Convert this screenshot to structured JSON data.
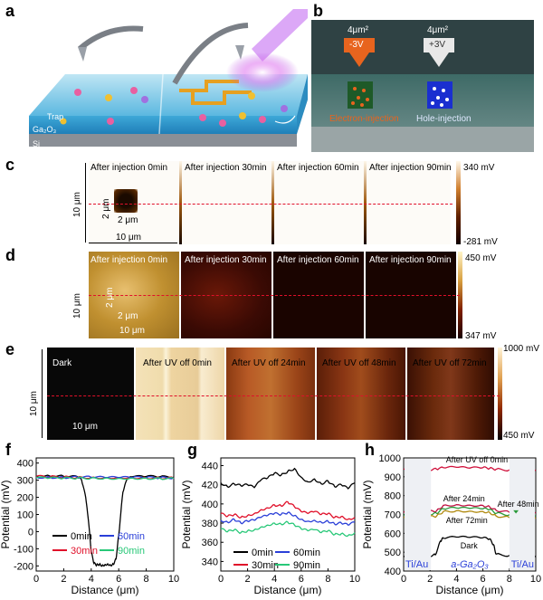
{
  "panel_labels": {
    "a": "a",
    "b": "b",
    "c": "c",
    "d": "d",
    "e": "e",
    "f": "f",
    "g": "g",
    "h": "h"
  },
  "panel_a": {
    "trap_label": "Trap",
    "material_label": "Ga₂O₃",
    "substrate_label": "Si"
  },
  "panel_b": {
    "left_area": "4μm²",
    "left_voltage": "-3V",
    "left_caption": "Electron-injection",
    "right_area": "4μm²",
    "right_voltage": "+3V",
    "right_caption": "Hole-injection",
    "left_color": "#e8641e",
    "right_color": "#1a2fd0"
  },
  "panel_c": {
    "titles": [
      "After injection  0min",
      "After injection   30min",
      "After injection   60min",
      "After injection   90min"
    ],
    "scale_max": "340 mV",
    "scale_min": "-281 mV",
    "dim_vertical": "10 μm",
    "dim_horizontal": "10 μm",
    "box_vertical": "2 μm",
    "box_horizontal": "2 μm"
  },
  "panel_d": {
    "titles": [
      "After injection  0min",
      "After injection   30min",
      "After injection   60min",
      "After injection   90min"
    ],
    "scale_max": "450 mV",
    "scale_min": "347 mV",
    "dim_vertical": "10 μm",
    "box_vertical": "2 μm",
    "box_horizontal": "2 μm",
    "dim_horizontal": "10 μm"
  },
  "panel_e": {
    "titles": [
      "Dark",
      "After UV off 0min",
      "After UV off 24min",
      "After UV off 48min",
      "After UV off 72min"
    ],
    "scale_max": "1000 mV",
    "scale_min": "450 mV",
    "dim_vertical": "10 μm",
    "dim_horizontal": "10 μm"
  },
  "chart_data": [
    {
      "id": "f",
      "type": "line",
      "xlabel": "Distance (μm)",
      "ylabel": "Potential (mV)",
      "xlim": [
        0,
        10
      ],
      "ylim": [
        -230,
        430
      ],
      "xticks": [
        0,
        2,
        4,
        6,
        8,
        10
      ],
      "yticks": [
        -200,
        -100,
        0,
        100,
        200,
        300,
        400
      ],
      "legend_position": "bottom",
      "series": [
        {
          "name": "0min",
          "color": "#000000",
          "x": [
            0,
            1,
            2,
            3,
            3.3,
            3.6,
            3.8,
            4.0,
            4.2,
            4.4,
            4.6,
            4.8,
            5.0,
            5.2,
            5.4,
            5.6,
            5.8,
            6.0,
            6.3,
            6.6,
            7,
            8,
            9,
            10
          ],
          "y": [
            325,
            324,
            323,
            320,
            300,
            200,
            60,
            -120,
            -185,
            -195,
            -190,
            -197,
            -192,
            -188,
            -195,
            -190,
            -160,
            -20,
            230,
            305,
            320,
            322,
            320,
            318
          ]
        },
        {
          "name": "30min",
          "color": "#e0102a",
          "x": [
            0,
            1,
            2,
            3,
            4,
            5,
            6,
            7,
            8,
            9,
            10
          ],
          "y": [
            322,
            320,
            318,
            317,
            316,
            315,
            316,
            315,
            314,
            313,
            312
          ]
        },
        {
          "name": "60min",
          "color": "#2a3fd8",
          "x": [
            0,
            1,
            2,
            3,
            4,
            5,
            6,
            7,
            8,
            9,
            10
          ],
          "y": [
            318,
            317,
            316,
            318,
            317,
            316,
            315,
            316,
            315,
            314,
            314
          ]
        },
        {
          "name": "90min",
          "color": "#28c878",
          "x": [
            0,
            1,
            2,
            3,
            4,
            5,
            6,
            7,
            8,
            9,
            10
          ],
          "y": [
            314,
            313,
            312,
            313,
            312,
            312,
            311,
            312,
            311,
            311,
            310
          ]
        }
      ]
    },
    {
      "id": "g",
      "type": "line",
      "xlabel": "Distance (μm)",
      "ylabel": "Potential (mV)",
      "xlim": [
        0,
        10
      ],
      "ylim": [
        330,
        448
      ],
      "xticks": [
        0,
        2,
        4,
        6,
        8,
        10
      ],
      "yticks": [
        340,
        360,
        380,
        400,
        420,
        440
      ],
      "legend_position": "bottom",
      "series": [
        {
          "name": "0min",
          "color": "#000000",
          "x": [
            0,
            0.5,
            1,
            1.5,
            2,
            2.5,
            3,
            3.5,
            4,
            4.5,
            5,
            5.5,
            6,
            6.5,
            7,
            7.5,
            8,
            8.5,
            9,
            9.5,
            10
          ],
          "y": [
            422,
            418,
            421,
            419,
            420,
            417,
            425,
            427,
            432,
            430,
            434,
            437,
            428,
            423,
            426,
            421,
            424,
            418,
            420,
            416,
            422
          ]
        },
        {
          "name": "30min",
          "color": "#e0102a",
          "x": [
            0,
            0.5,
            1,
            1.5,
            2,
            2.5,
            3,
            3.5,
            4,
            4.5,
            5,
            5.5,
            6,
            6.5,
            7,
            7.5,
            8,
            8.5,
            9,
            9.5,
            10
          ],
          "y": [
            390,
            387,
            389,
            386,
            388,
            390,
            394,
            396,
            399,
            398,
            402,
            397,
            392,
            390,
            392,
            389,
            390,
            386,
            387,
            384,
            386
          ]
        },
        {
          "name": "60min",
          "color": "#2a3fd8",
          "x": [
            0,
            0.5,
            1,
            1.5,
            2,
            2.5,
            3,
            3.5,
            4,
            4.5,
            5,
            5.5,
            6,
            6.5,
            7,
            7.5,
            8,
            8.5,
            9,
            9.5,
            10
          ],
          "y": [
            383,
            381,
            384,
            380,
            382,
            383,
            386,
            388,
            390,
            389,
            391,
            388,
            384,
            382,
            383,
            381,
            382,
            379,
            380,
            378,
            381
          ]
        },
        {
          "name": "90min",
          "color": "#28c878",
          "x": [
            0,
            0.5,
            1,
            1.5,
            2,
            2.5,
            3,
            3.5,
            4,
            4.5,
            5,
            5.5,
            6,
            6.5,
            7,
            7.5,
            8,
            8.5,
            9,
            9.5,
            10
          ],
          "y": [
            374,
            371,
            373,
            370,
            372,
            373,
            376,
            378,
            380,
            379,
            381,
            378,
            374,
            372,
            373,
            370,
            372,
            368,
            369,
            367,
            370
          ]
        }
      ]
    },
    {
      "id": "h",
      "type": "line",
      "xlabel": "Distance (μm)",
      "ylabel": "Potential (mV)",
      "xlim": [
        0,
        10
      ],
      "ylim": [
        400,
        1000
      ],
      "xticks": [
        0,
        2,
        4,
        6,
        8,
        10
      ],
      "yticks": [
        400,
        500,
        600,
        700,
        800,
        900,
        1000
      ],
      "annotations": [
        "After UV off 0min",
        "After 24min",
        "After 48min",
        "After 72min",
        "Dark"
      ],
      "region_labels": {
        "left": "Ti/Au",
        "middle": "a-Ga₂O₃",
        "right": "Ti/Au"
      },
      "series": [
        {
          "name": "After UV off 0min",
          "color": "#d0103a",
          "x": [
            0,
            1,
            2,
            2.5,
            3,
            4,
            5,
            6,
            6.5,
            7,
            8,
            9,
            10
          ],
          "y": [
            942,
            944,
            938,
            940,
            948,
            950,
            946,
            948,
            944,
            940,
            936,
            938,
            935
          ]
        },
        {
          "name": "After 24min",
          "color": "#c01040",
          "x": [
            0,
            1,
            2,
            2.5,
            3,
            4,
            5,
            6,
            6.5,
            7,
            8,
            9,
            10
          ],
          "y": [
            712,
            714,
            716,
            720,
            748,
            752,
            750,
            748,
            742,
            722,
            712,
            710,
            708
          ]
        },
        {
          "name": "After 48min",
          "color": "#2a9a3a",
          "x": [
            0,
            1,
            2,
            2.5,
            3,
            4,
            5,
            6,
            6.5,
            7,
            8,
            9,
            10
          ],
          "y": [
            698,
            700,
            702,
            706,
            730,
            734,
            732,
            730,
            726,
            706,
            698,
            696,
            694
          ]
        },
        {
          "name": "After 72min",
          "color": "#b08a10",
          "x": [
            0,
            1,
            2,
            2.5,
            3,
            4,
            5,
            6,
            6.5,
            7,
            8,
            9,
            10
          ],
          "y": [
            684,
            686,
            688,
            692,
            716,
            720,
            718,
            716,
            712,
            692,
            684,
            682,
            680
          ]
        },
        {
          "name": "Dark",
          "color": "#000000",
          "x": [
            0,
            1,
            2,
            2.4,
            2.8,
            3,
            4,
            5,
            6,
            6.5,
            6.8,
            7,
            8,
            9,
            10
          ],
          "y": [
            478,
            480,
            482,
            486,
            560,
            574,
            580,
            578,
            576,
            570,
            540,
            490,
            482,
            480,
            478
          ]
        }
      ]
    }
  ]
}
